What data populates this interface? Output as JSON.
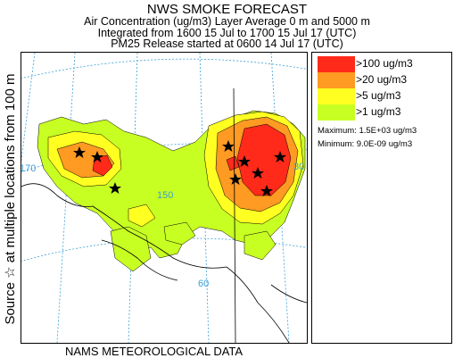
{
  "header": {
    "title": "NWS SMOKE FORECAST",
    "line2": "Air Concentration (ug/m3) Layer Average    0 m and  5000 m",
    "line3": "Integrated from 1600 15 Jul to 1700 15 Jul 17 (UTC)",
    "line4": "PM25 Release started at 0600 14 Jul 17 (UTC)"
  },
  "side_label": "Source ☆ at multiple locations  from 100 m",
  "footer": "NAMS METEOROLOGICAL DATA",
  "map_labels": {
    "lon_170": "170",
    "lon_150": "150",
    "lat_60": "60",
    "lon_130": "30"
  },
  "legend": {
    "items": [
      {
        "label": ">100 ug/m3",
        "color": "#ff2a1a"
      },
      {
        "label": ">20 ug/m3",
        "color": "#ff9a22"
      },
      {
        "label": ">5 ug/m3",
        "color": "#ffff22"
      },
      {
        "label": ">1 ug/m3",
        "color": "#c8ff22"
      }
    ],
    "maximum": "Maximum: 1.5E+03 ug/m3",
    "minimum": "Minimum: 9.0E-09 ug/m3"
  },
  "colors": {
    "red": "#ff2a1a",
    "orange": "#ff9a22",
    "yellow": "#ffff22",
    "green": "#c8ff22",
    "graticule": "#3a9fd6"
  }
}
